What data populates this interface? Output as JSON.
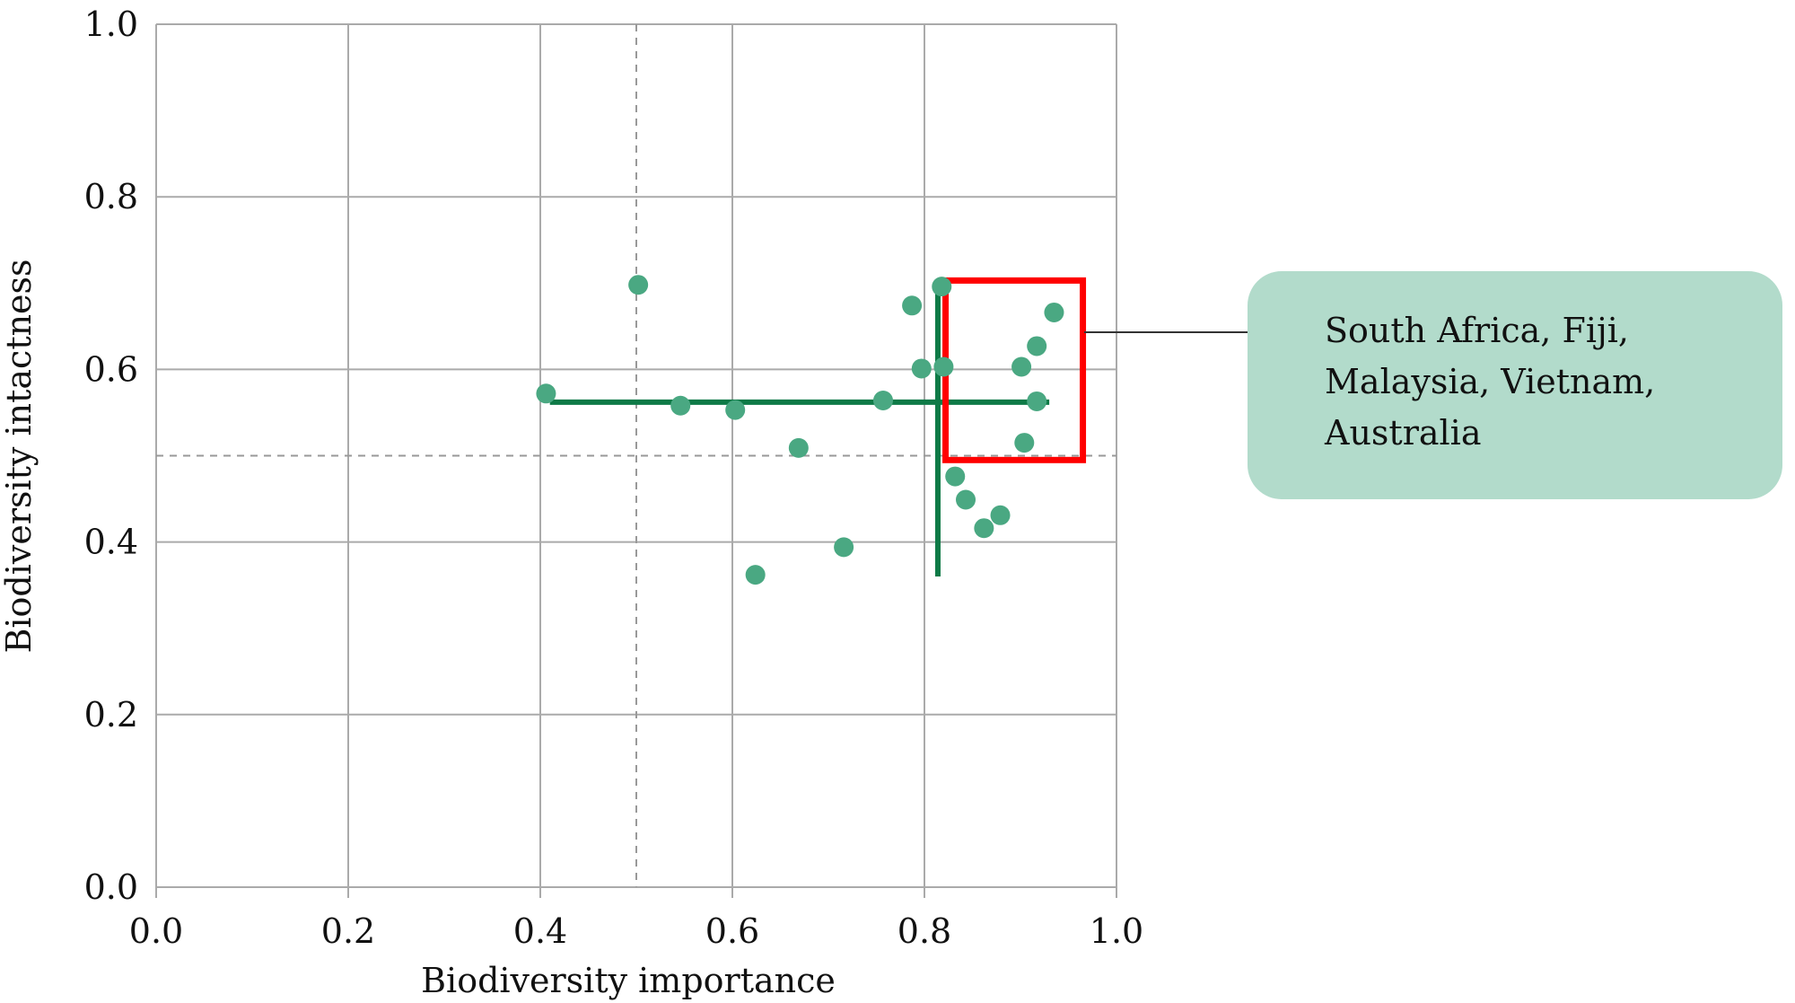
{
  "chart_data": {
    "type": "scatter",
    "title": "",
    "xlabel": "Biodiversity importance",
    "ylabel": "Biodiversity intactness",
    "xlim": [
      0.0,
      1.0
    ],
    "ylim": [
      0.0,
      1.0
    ],
    "xticks": [
      "0.0",
      "0.2",
      "0.4",
      "0.6",
      "0.8",
      "1.0"
    ],
    "yticks": [
      "0.0",
      "0.2",
      "0.4",
      "0.6",
      "0.8",
      "1.0"
    ],
    "grid": true,
    "thresholds": {
      "x": 0.5,
      "y": 0.5
    },
    "points": [
      {
        "x": 0.406,
        "y": 0.572
      },
      {
        "x": 0.502,
        "y": 0.698
      },
      {
        "x": 0.546,
        "y": 0.558
      },
      {
        "x": 0.603,
        "y": 0.553
      },
      {
        "x": 0.624,
        "y": 0.362
      },
      {
        "x": 0.669,
        "y": 0.509
      },
      {
        "x": 0.716,
        "y": 0.394
      },
      {
        "x": 0.757,
        "y": 0.564
      },
      {
        "x": 0.787,
        "y": 0.674
      },
      {
        "x": 0.797,
        "y": 0.601
      },
      {
        "x": 0.818,
        "y": 0.696
      },
      {
        "x": 0.82,
        "y": 0.603
      },
      {
        "x": 0.832,
        "y": 0.476
      },
      {
        "x": 0.843,
        "y": 0.449
      },
      {
        "x": 0.862,
        "y": 0.416
      },
      {
        "x": 0.879,
        "y": 0.431
      },
      {
        "x": 0.901,
        "y": 0.603
      },
      {
        "x": 0.904,
        "y": 0.515
      },
      {
        "x": 0.917,
        "y": 0.627
      },
      {
        "x": 0.917,
        "y": 0.563
      },
      {
        "x": 0.935,
        "y": 0.666
      }
    ],
    "mean_lines": {
      "horizontal": {
        "y": 0.562,
        "x_from": 0.41,
        "x_to": 0.93
      },
      "vertical": {
        "x": 0.814,
        "y_from": 0.36,
        "y_to": 0.7
      }
    },
    "highlight_box": {
      "x_from": 0.822,
      "x_to": 0.965,
      "y_from": 0.495,
      "y_to": 0.703
    },
    "annotation": "South Africa, Fiji,\nMalaysia, Vietnam,\nAustralia"
  },
  "colors": {
    "point": "#4aa882",
    "mean_line": "#0e7a47",
    "highlight": "#ff0000",
    "grid": "#aaaaaa",
    "threshold": "#999999",
    "callout_bg": "#b2dbcb",
    "leader": "#333333"
  }
}
